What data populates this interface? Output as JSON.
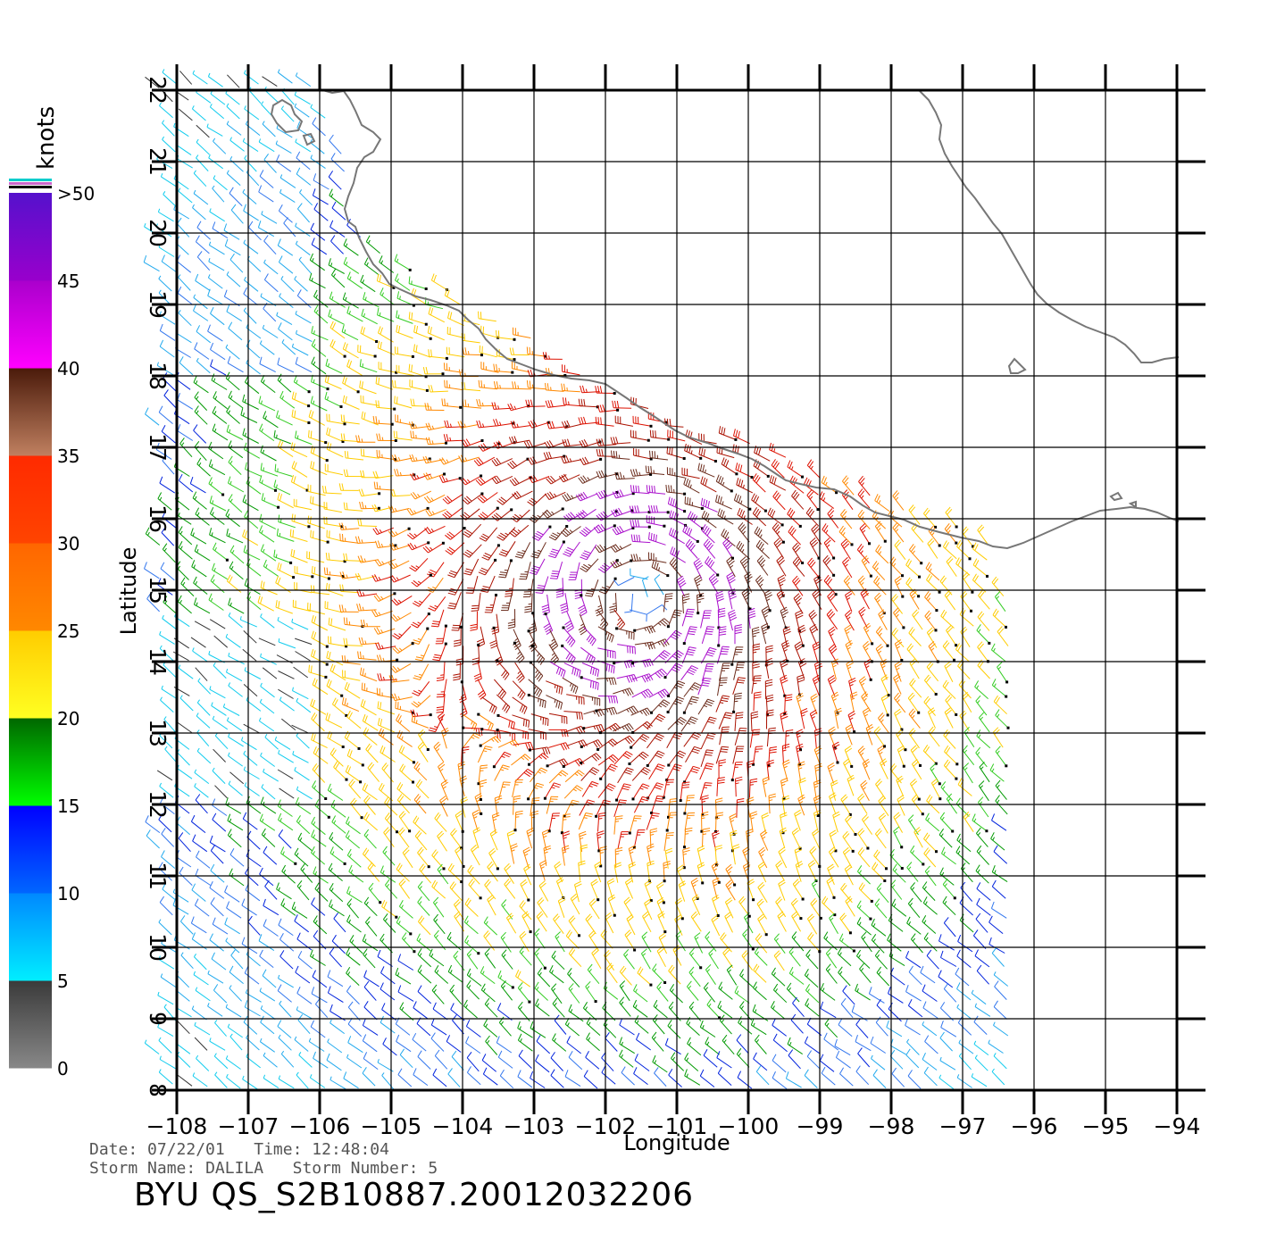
{
  "legend": {
    "unit": "knots",
    "ticks": [
      ">50",
      "45",
      "40",
      "35",
      "30",
      "25",
      "20",
      "15",
      "10",
      "5",
      "0"
    ],
    "bands": [
      {
        "from": 0,
        "to": 5,
        "top": "#3a3a3a",
        "bottom": "#888888"
      },
      {
        "from": 5,
        "to": 10,
        "top": "#0088ff",
        "bottom": "#00eeff"
      },
      {
        "from": 10,
        "to": 15,
        "top": "#0000ff",
        "bottom": "#0066ff"
      },
      {
        "from": 15,
        "to": 20,
        "top": "#006600",
        "bottom": "#00ff00"
      },
      {
        "from": 20,
        "to": 25,
        "top": "#ffcc00",
        "bottom": "#ffff22"
      },
      {
        "from": 25,
        "to": 30,
        "top": "#ff6600",
        "bottom": "#ff8800"
      },
      {
        "from": 30,
        "to": 35,
        "top": "#ff2a00",
        "bottom": "#ff4400"
      },
      {
        "from": 35,
        "to": 40,
        "top": "#4a1a0a",
        "bottom": "#c08060"
      },
      {
        "from": 40,
        "to": 45,
        "top": "#aa00cc",
        "bottom": "#ff00ff"
      },
      {
        "from": 45,
        "to": 50,
        "top": "#5511cc",
        "bottom": "#9900cc"
      }
    ],
    "top_stripes": [
      "#00cccc",
      "#cc66cc",
      "#000000"
    ]
  },
  "map": {
    "x_axis_title": "Longitude",
    "y_axis_title": "Latitude",
    "lon_ticks": [
      "−108",
      "−107",
      "−106",
      "−105",
      "−104",
      "−103",
      "−102",
      "−101",
      "−100",
      "−99",
      "−98",
      "−97",
      "−96",
      "−95",
      "−94"
    ],
    "lat_ticks": [
      "8",
      "9",
      "10",
      "11",
      "12",
      "13",
      "14",
      "15",
      "16",
      "17",
      "18",
      "19",
      "20",
      "21",
      "22"
    ],
    "lon_range": [
      -108,
      -94
    ],
    "lat_range": [
      8,
      22
    ],
    "coastline_color": "#777777",
    "grid_color": "#000000",
    "storm_center": {
      "lon": -101.5,
      "lat": 14.9
    },
    "features": [
      "coastline-mexico",
      "islas-marias",
      "isla-socorro-sandbar",
      "wind-barbs"
    ]
  },
  "footer": {
    "date_label": "Date:",
    "date": "07/22/01",
    "time_label": "Time:",
    "time": "12:48:04",
    "storm_name_label": "Storm Name:",
    "storm_name": "DALILA",
    "storm_number_label": "Storm Number:",
    "storm_number": "5",
    "product": "BYU QS_S2B10887.20012032206"
  }
}
